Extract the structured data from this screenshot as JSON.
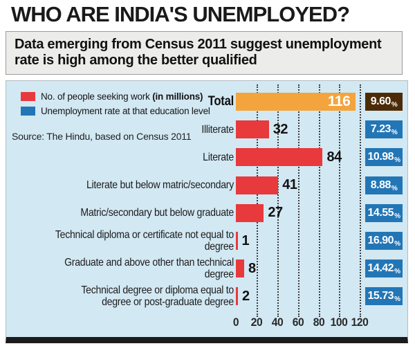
{
  "header": {
    "title": "WHO ARE INDIA'S UNEMPLOYED?"
  },
  "subtitle": {
    "text": "Data emerging from Census 2011 suggest unemployment\nrate is high among the better qualified"
  },
  "legend": {
    "seekers_normal": "No. of people seeking work ",
    "seekers_bold": "(in millions)",
    "rate": "Unemployment rate at that education level"
  },
  "source": {
    "text": "Source: The Hindu, based on Census 2011"
  },
  "colors": {
    "title": "#1a1a1a",
    "subtitle_bg": "#ecedea",
    "panel_bg": "#d2e8f3",
    "bar_red": "#e8393c",
    "bar_orange": "#f3a43d",
    "badge_blue": "#2376b6",
    "badge_brown": "#4c2c08"
  },
  "chart_data": {
    "type": "bar",
    "orientation": "horizontal",
    "title": "WHO ARE INDIA'S UNEMPLOYED?",
    "subtitle": "Data emerging from Census 2011 suggest unemployment rate is high among the better qualified",
    "categories": [
      "Total",
      "Illiterate",
      "Literate",
      "Literate but below matric/secondary",
      "Matric/secondary but below graduate",
      "Technical diploma or certificate not equal to degree",
      "Graduate and above other than technical degree",
      "Technical degree or diploma equal to\ndegree or post-graduate degree"
    ],
    "series": [
      {
        "name": "No. of people seeking work (in millions)",
        "values": [
          116,
          32,
          84,
          41,
          27,
          1,
          8,
          2
        ]
      },
      {
        "name": "Unemployment rate at that education level (%)",
        "values": [
          9.6,
          7.23,
          10.98,
          8.88,
          14.55,
          16.9,
          14.42,
          15.73
        ]
      }
    ],
    "rate_labels": [
      "9.60",
      "7.23",
      "10.98",
      "8.88",
      "14.55",
      "16.90",
      "14.42",
      "15.73"
    ],
    "xlim": [
      0,
      120
    ],
    "xticks": [
      0,
      20,
      40,
      60,
      80,
      100,
      120
    ],
    "grid": "dotted-vertical",
    "legend_position": "top-left"
  }
}
